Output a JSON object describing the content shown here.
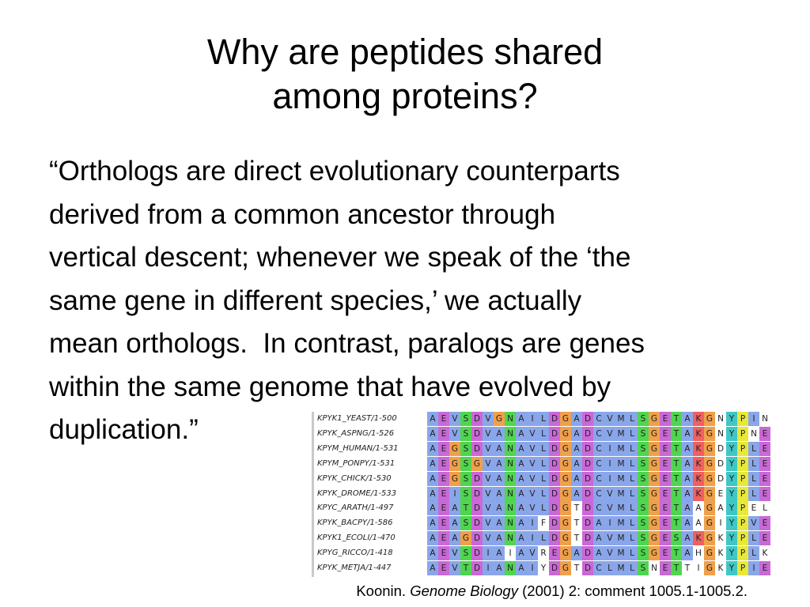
{
  "slide": {
    "title_line1": "Why are peptides shared",
    "title_line2": "among proteins?",
    "body_lines": [
      "“Orthologs are direct evolutionary counterparts",
      "derived from a common ancestor through",
      "vertical descent; whenever we speak of the ‘the",
      "same gene in different species,’ we actually",
      "mean orthologs.  In contrast, paralogs are genes",
      "within the same genome that have evolved by",
      "duplication.”"
    ],
    "citation": {
      "author": "Koonin.",
      "journal": "Genome Biology",
      "details": "(2001) 2: comment 1005.1-1005.2."
    }
  },
  "alignment": {
    "sequences": [
      {
        "name": "KPYK1_YEAST/1-500",
        "residues": "AEVSDVGNAILDGADCVMLSGETAKGNYPIN"
      },
      {
        "name": "KPYK_ASPNG/1-526",
        "residues": "AEVSDVANAVLDGADCVMLSGETAKGNYPNE"
      },
      {
        "name": "KPYM_HUMAN/1-531",
        "residues": "AEGSDVANAVLDGADCIMLSGETAKGDYPLE"
      },
      {
        "name": "KPYM_PONPY/1-531",
        "residues": "AEGSGVANAVLDGADCIMLSGETAKGDYPLE"
      },
      {
        "name": "KPYK_CHICK/1-530",
        "residues": "AEGSDVANAVLDGADCIMLSGETAKGDYPLE"
      },
      {
        "name": "KPYK_DROME/1-533",
        "residues": "AEISDVANAVLDGADCVMLSGETAKGEYPLE"
      },
      {
        "name": "KPYC_ARATH/1-497",
        "residues": "AEATDVANAVLDGTDCVMLSGETAAGAYPEL"
      },
      {
        "name": "KPYK_BACPY/1-586",
        "residues": "AEASDVANAIFDGTDAIMLSGETAAGIYPVE"
      },
      {
        "name": "KPYK1_ECOLI/1-470",
        "residues": "AEAGDVANAILDGTDAVMLSGESAKGKYPLE"
      },
      {
        "name": "KPYG_RICCO/1-418",
        "residues": "AEVSDIAIAVREGADAVMLSGETAHGKYPLK"
      },
      {
        "name": "KPYK_METJA/1-447",
        "residues": "AEVTDIANAIYDGTDCLMLSNETTIGKYPIE"
      }
    ],
    "colors": {
      "hydrophobic": "#8aa6ea",
      "acidic": "#c968d6",
      "polar": "#4fd64f",
      "glycine": "#f0a04a",
      "proline": "#e8e83a",
      "aromatic": "#3fc7c7",
      "basic": "#f06060",
      "cysteine": "#f0a0a0",
      "unconserved": "#ffffff"
    }
  }
}
